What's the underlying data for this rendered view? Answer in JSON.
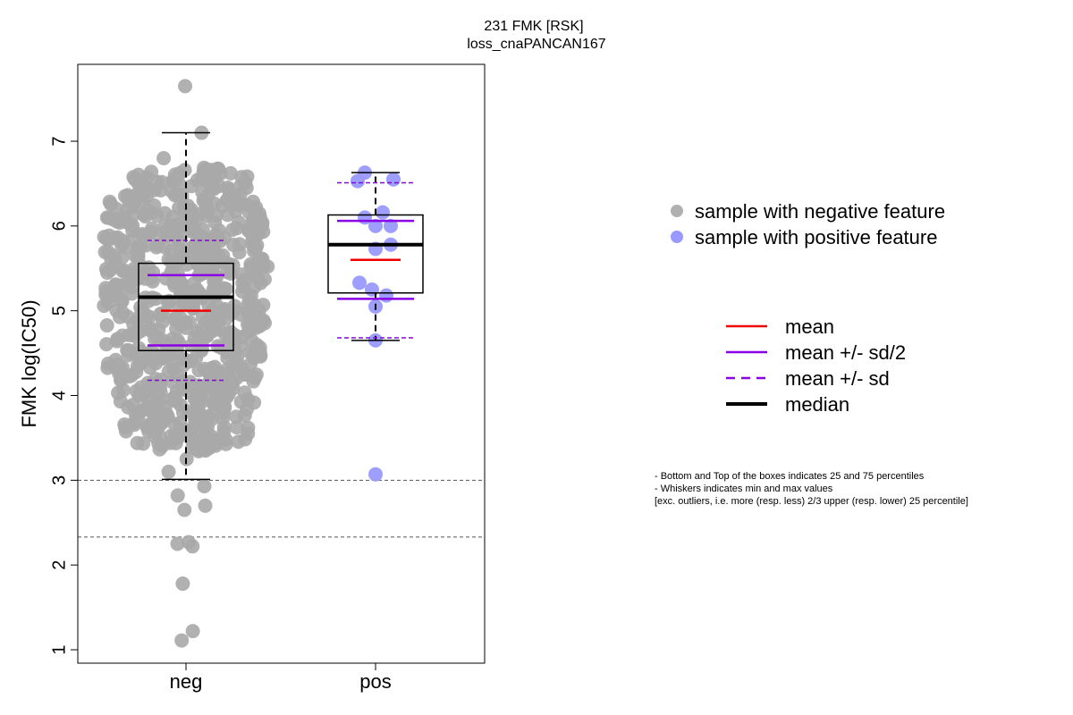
{
  "chart_data": {
    "type": "boxplot",
    "title": "231 FMK [RSK]",
    "subtitle": "loss_cnaPANCAN167",
    "ylabel": "FMK log(IC50)",
    "xlabel": "",
    "categories": [
      "neg",
      "pos"
    ],
    "yticks": [
      1,
      2,
      3,
      4,
      5,
      6,
      7
    ],
    "ylim": [
      0.85,
      7.9
    ],
    "grid": false,
    "reference_lines": [
      3.0,
      2.33
    ],
    "groups": [
      {
        "name": "neg",
        "color": "#a9a9a9",
        "box": {
          "q1": 4.53,
          "median": 5.16,
          "q3": 5.56,
          "whisker_low": 3.01,
          "whisker_high": 7.1
        },
        "mean": 5.0,
        "mean_plus_half_sd": 5.42,
        "mean_minus_half_sd": 4.59,
        "mean_plus_sd": 5.83,
        "mean_minus_sd": 4.18,
        "points_sample": [
          7.65,
          7.1,
          6.8,
          6.62,
          6.45,
          6.3,
          6.15,
          6.05,
          5.95,
          5.85,
          5.75,
          5.65,
          5.55,
          5.45,
          5.35,
          5.25,
          5.15,
          5.05,
          4.95,
          4.85,
          4.75,
          4.65,
          4.55,
          4.45,
          4.35,
          4.25,
          4.15,
          4.05,
          3.95,
          3.85,
          3.75,
          3.65,
          3.55,
          3.45,
          3.35,
          3.25,
          3.1,
          2.93,
          2.82,
          2.7,
          2.65,
          2.27,
          2.25,
          2.22,
          1.78,
          1.22,
          1.11
        ]
      },
      {
        "name": "pos",
        "color": "#9999ff",
        "box": {
          "q1": 5.21,
          "median": 5.78,
          "q3": 6.13,
          "whisker_low": 4.65,
          "whisker_high": 6.63
        },
        "mean": 5.6,
        "mean_plus_half_sd": 6.06,
        "mean_minus_half_sd": 5.14,
        "mean_plus_sd": 6.51,
        "mean_minus_sd": 4.68,
        "points": [
          6.63,
          6.55,
          6.53,
          6.16,
          6.1,
          6.0,
          6.0,
          5.78,
          5.73,
          5.33,
          5.25,
          5.18,
          5.05,
          4.65,
          3.07
        ]
      }
    ],
    "legend_points": [
      {
        "label": "sample with negative feature",
        "color": "#b0b0b0"
      },
      {
        "label": "sample with positive feature",
        "color": "#9999ff"
      }
    ],
    "legend_lines": [
      {
        "label": "mean",
        "color": "#ee0000",
        "style": "solid"
      },
      {
        "label": "mean +/- sd/2",
        "color": "#8a00e6",
        "style": "solid"
      },
      {
        "label": "mean +/- sd",
        "color": "#8a00e6",
        "style": "dashed"
      },
      {
        "label": "median",
        "color": "#000000",
        "style": "solid-thick"
      }
    ],
    "notes": [
      "- Bottom and Top of the boxes indicates 25 and 75 percentiles",
      "- Whiskers indicates min and max values",
      "[exc. outliers, i.e. more (resp. less) 2/3 upper (resp. lower) 25 percentile]"
    ]
  }
}
